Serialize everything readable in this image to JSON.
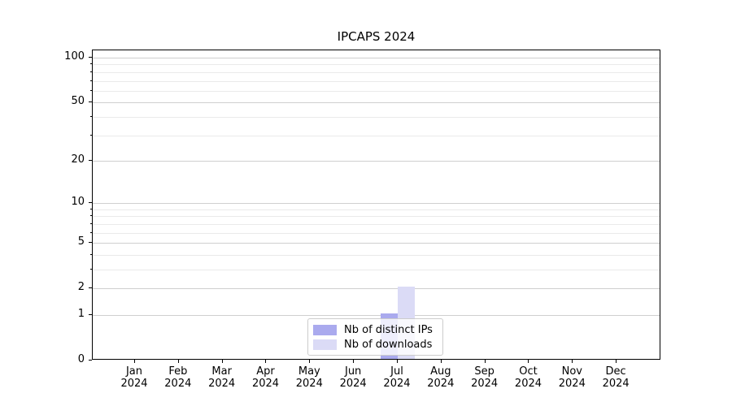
{
  "title": "IPCAPS 2024",
  "chart_data": {
    "type": "bar",
    "title": "IPCAPS 2024",
    "categories": [
      "Jan 2024",
      "Feb 2024",
      "Mar 2024",
      "Apr 2024",
      "May 2024",
      "Jun 2024",
      "Jul 2024",
      "Aug 2024",
      "Sep 2024",
      "Oct 2024",
      "Nov 2024",
      "Dec 2024"
    ],
    "months": [
      "Jan",
      "Feb",
      "Mar",
      "Apr",
      "May",
      "Jun",
      "Jul",
      "Aug",
      "Sep",
      "Oct",
      "Nov",
      "Dec"
    ],
    "year": "2024",
    "series": [
      {
        "name": "Nb of distinct IPs",
        "color": "#aaaaee",
        "values": [
          0,
          0,
          0,
          0,
          0,
          0,
          1,
          0,
          0,
          0,
          0,
          0
        ]
      },
      {
        "name": "Nb of downloads",
        "color": "#dbdbf6",
        "values": [
          0,
          0,
          0,
          0,
          0,
          0,
          2,
          0,
          0,
          0,
          0,
          0
        ]
      }
    ],
    "xlabel": "",
    "ylabel": "",
    "y_scale": "log1p",
    "y_ticks": [
      0,
      1,
      2,
      5,
      10,
      20,
      50,
      100
    ],
    "y_minor_ticks": [
      3,
      4,
      6,
      7,
      8,
      9,
      30,
      40,
      60,
      70,
      80,
      90
    ],
    "y_max": 112,
    "grid": "horizontal major+minor",
    "legend_position": "lower center"
  },
  "colors": {
    "axis": "#000000",
    "grid_major": "#cfcfcf",
    "grid_minor": "#eaeaea",
    "legend_border": "#cccccc"
  }
}
